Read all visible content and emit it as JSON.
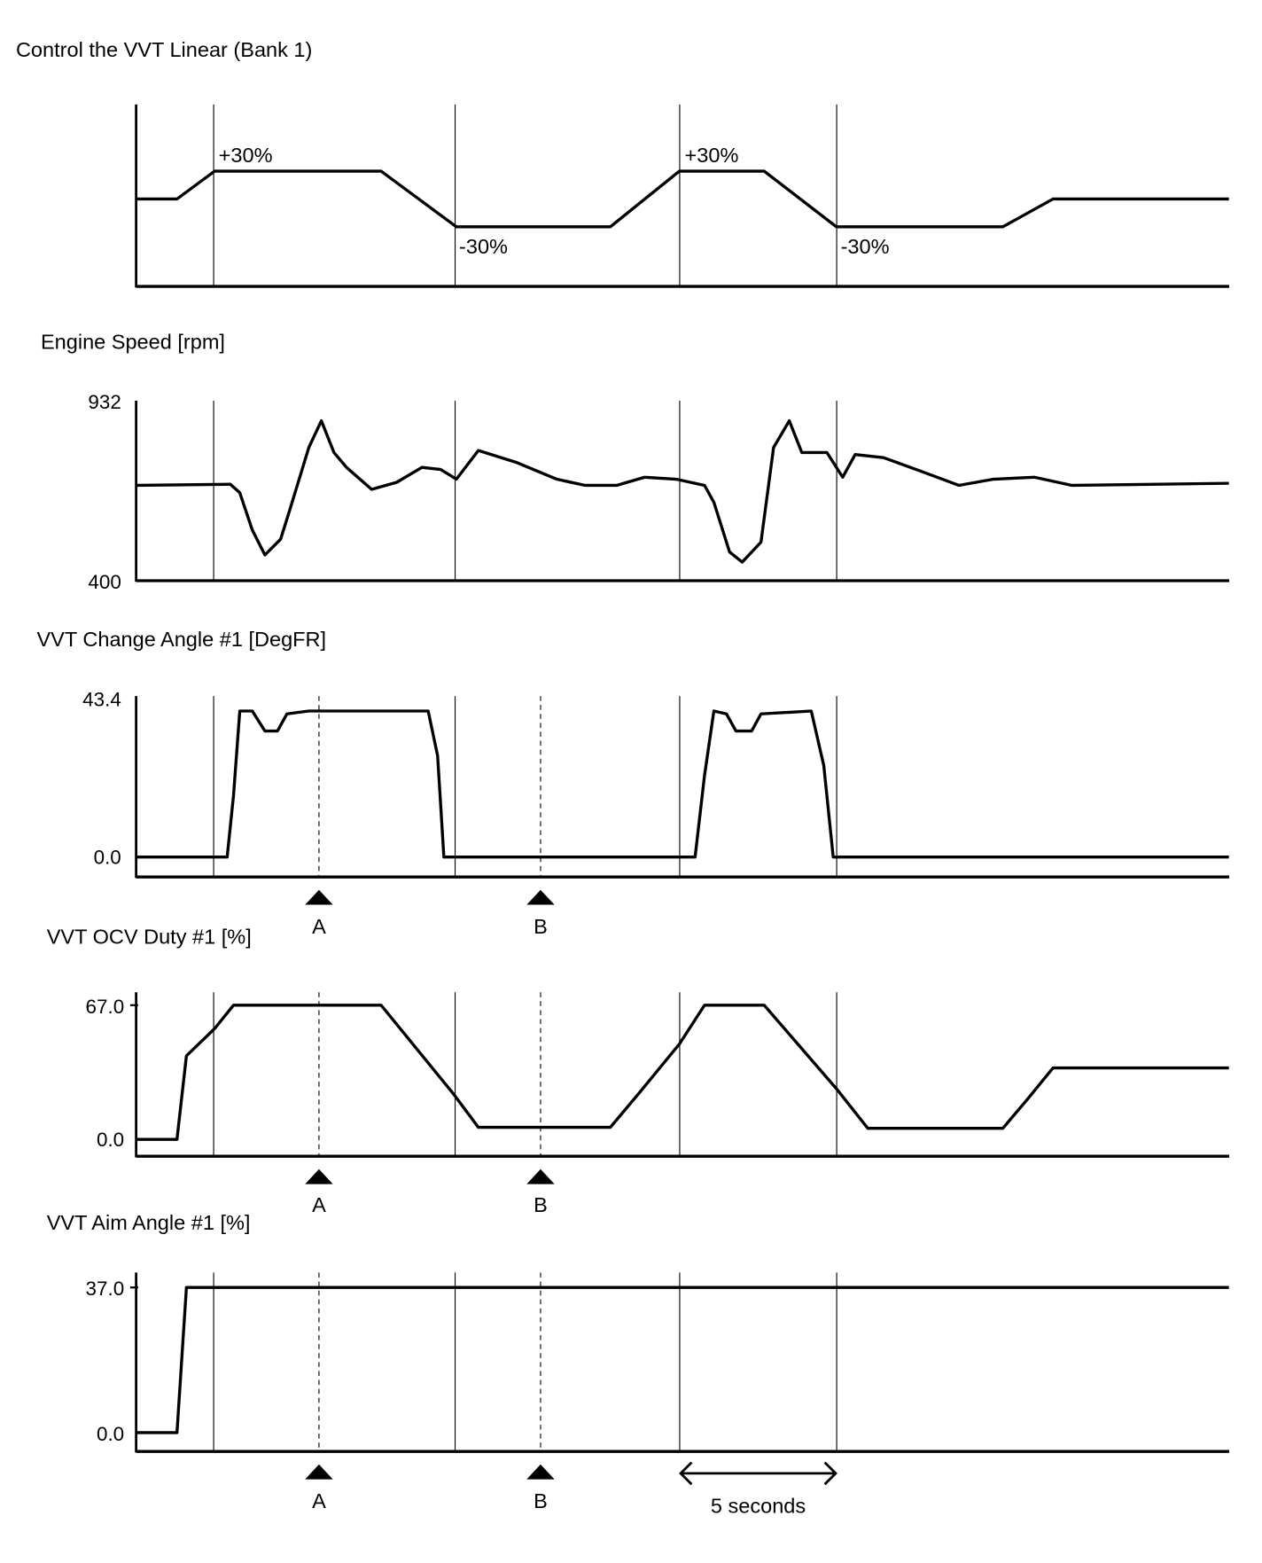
{
  "chart_data": [
    {
      "type": "line",
      "title": "Control the VVT Linear (Bank 1)",
      "x": [
        0,
        1.3,
        2.5,
        7.8,
        10.2,
        15.1,
        17.3,
        20.0,
        22.3,
        27.6,
        29.2,
        34.8
      ],
      "values": [
        0,
        0,
        30,
        30,
        -30,
        -30,
        30,
        30,
        -30,
        -30,
        0,
        0
      ],
      "annotations": [
        "+30%",
        "-30%",
        "+30%",
        "-30%"
      ],
      "ylim": [
        -30,
        30
      ]
    },
    {
      "type": "line",
      "title": "Engine Speed [rpm]",
      "x": [
        0,
        3.0,
        3.3,
        3.7,
        4.1,
        4.6,
        4.9,
        5.5,
        5.9,
        6.3,
        6.7,
        7.5,
        8.3,
        9.1,
        9.7,
        10.2,
        10.9,
        12.1,
        13.4,
        14.3,
        15.3,
        16.2,
        17.2,
        18.1,
        18.4,
        18.9,
        19.3,
        19.9,
        20.3,
        20.8,
        21.2,
        22.0,
        22.5,
        22.9,
        23.8,
        25.1,
        26.2,
        27.3,
        28.6,
        29.8,
        34.8
      ],
      "values": [
        682,
        685,
        660,
        550,
        476,
        523,
        611,
        794,
        873,
        779,
        735,
        670,
        691,
        735,
        729,
        700,
        785,
        750,
        700,
        682,
        682,
        706,
        700,
        682,
        632,
        485,
        455,
        514,
        794,
        873,
        779,
        779,
        706,
        773,
        764,
        720,
        682,
        700,
        706,
        682,
        688
      ],
      "ytick_labels": [
        "932",
        "400"
      ],
      "ylim": [
        400,
        932
      ]
    },
    {
      "type": "line",
      "title": "VVT Change Angle #1 [DegFR]",
      "x": [
        0,
        2.9,
        3.1,
        3.3,
        3.7,
        4.1,
        4.5,
        4.8,
        5.5,
        9.3,
        9.6,
        9.8,
        17.8,
        18.1,
        18.4,
        18.8,
        19.1,
        19.6,
        19.9,
        21.5,
        21.9,
        22.2,
        34.8
      ],
      "values": [
        0,
        0,
        16.9,
        40.1,
        40.1,
        34.6,
        34.6,
        39.3,
        40.1,
        40.1,
        27.8,
        0,
        0,
        22.4,
        40.1,
        39.3,
        34.6,
        34.6,
        39.3,
        40.1,
        25.1,
        0,
        0
      ],
      "ytick_labels": [
        "43.4",
        "0.0"
      ],
      "ylim": [
        0,
        43.4
      ],
      "markers": [
        "A",
        "B"
      ]
    },
    {
      "type": "line",
      "title": "VVT OCV Duty #1 [%]",
      "x": [
        0,
        1.3,
        1.6,
        2.5,
        3.1,
        7.8,
        10.1,
        10.9,
        15.1,
        16.0,
        17.3,
        18.1,
        20.0,
        22.3,
        23.3,
        27.6,
        28.4,
        29.2,
        34.8
      ],
      "values": [
        0,
        0,
        41.7,
        55.3,
        67,
        67,
        22.8,
        6.0,
        6.0,
        22.8,
        47.6,
        67,
        67,
        25.3,
        5.5,
        5.5,
        20.3,
        35.7,
        35.7
      ],
      "ytick_labels": [
        "67.0",
        "0.0"
      ],
      "ylim": [
        0,
        67.0
      ],
      "markers": [
        "A",
        "B"
      ]
    },
    {
      "type": "line",
      "title": "VVT Aim Angle #1 [%]",
      "x": [
        0,
        1.3,
        1.6,
        34.8
      ],
      "values": [
        0,
        0,
        37,
        37
      ],
      "ytick_labels": [
        "37.0",
        "0.0"
      ],
      "ylim": [
        0,
        37.0
      ],
      "markers": [
        "A",
        "B"
      ]
    }
  ],
  "time_scale_label": "5 seconds"
}
